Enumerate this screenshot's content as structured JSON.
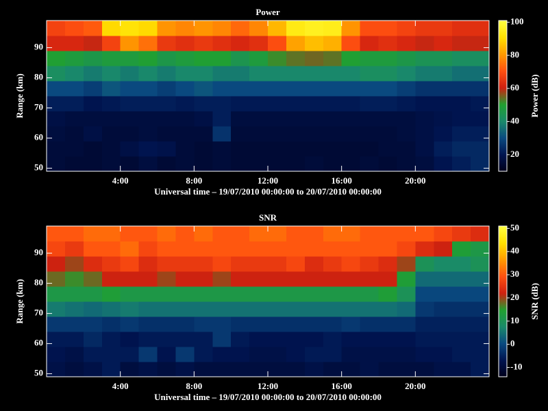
{
  "chart_data": [
    {
      "type": "heatmap",
      "title": "Power",
      "xlabel": "Universal time – 19/07/2010 00:00:00 to 20/07/2010 00:00:00",
      "ylabel": "Range (km)",
      "colorbar_label": "Power (dB)",
      "xbins": [
        0,
        1,
        2,
        3,
        4,
        5,
        6,
        7,
        8,
        9,
        10,
        11,
        12,
        13,
        14,
        15,
        16,
        17,
        18,
        19,
        20,
        21,
        22,
        23,
        24
      ],
      "ybins": [
        49,
        54,
        59,
        64,
        69,
        74,
        79,
        84,
        89,
        94,
        99
      ],
      "z": [
        [
          16,
          15,
          15,
          16,
          15,
          17,
          15,
          16,
          15,
          16,
          15,
          15,
          15,
          15,
          16,
          15,
          15,
          16,
          15,
          16,
          17,
          20,
          22,
          24
        ],
        [
          16,
          16,
          15,
          16,
          18,
          20,
          19,
          16,
          15,
          16,
          15,
          15,
          15,
          15,
          15,
          15,
          15,
          15,
          16,
          16,
          18,
          22,
          24,
          24
        ],
        [
          17,
          16,
          18,
          16,
          16,
          17,
          16,
          16,
          16,
          26,
          16,
          16,
          16,
          16,
          16,
          16,
          16,
          16,
          16,
          17,
          18,
          20,
          22,
          22
        ],
        [
          18,
          17,
          17,
          17,
          17,
          17,
          17,
          17,
          18,
          22,
          17,
          17,
          17,
          17,
          17,
          17,
          17,
          17,
          17,
          17,
          18,
          19,
          20,
          20
        ],
        [
          22,
          22,
          20,
          21,
          22,
          22,
          22,
          21,
          22,
          22,
          21,
          21,
          21,
          21,
          21,
          21,
          21,
          22,
          22,
          21,
          20,
          20,
          20,
          21
        ],
        [
          30,
          30,
          28,
          32,
          30,
          30,
          28,
          30,
          32,
          30,
          30,
          30,
          30,
          30,
          30,
          30,
          30,
          30,
          30,
          28,
          26,
          26,
          26,
          26
        ],
        [
          42,
          40,
          38,
          40,
          38,
          40,
          38,
          40,
          40,
          38,
          38,
          40,
          40,
          40,
          40,
          40,
          40,
          42,
          42,
          40,
          38,
          38,
          36,
          36
        ],
        [
          50,
          48,
          46,
          48,
          48,
          50,
          46,
          48,
          50,
          50,
          45,
          48,
          52,
          54,
          55,
          54,
          50,
          48,
          48,
          46,
          44,
          44,
          42,
          42
        ],
        [
          62,
          62,
          60,
          68,
          80,
          75,
          66,
          64,
          66,
          64,
          62,
          64,
          70,
          82,
          86,
          84,
          70,
          62,
          64,
          62,
          60,
          62,
          60,
          60
        ],
        [
          68,
          70,
          72,
          90,
          92,
          90,
          80,
          78,
          80,
          78,
          74,
          78,
          85,
          94,
          96,
          95,
          80,
          70,
          70,
          68,
          66,
          66,
          64,
          64
        ]
      ],
      "xlim": [
        0,
        24
      ],
      "ylim": [
        49,
        99
      ],
      "xticks": [
        {
          "value": 4,
          "label": "4:00"
        },
        {
          "value": 8,
          "label": "8:00"
        },
        {
          "value": 12,
          "label": "12:00"
        },
        {
          "value": 16,
          "label": "16:00"
        },
        {
          "value": 20,
          "label": "20:00"
        }
      ],
      "yticks": [
        50,
        60,
        70,
        80,
        90
      ],
      "clim": [
        10,
        101
      ],
      "cticks": [
        20,
        40,
        60,
        80,
        100
      ],
      "colormap": [
        "#00001a",
        "#001450",
        "#0a4a80",
        "#1a8a6a",
        "#20a030",
        "#d02010",
        "#ff5010",
        "#ff9a00",
        "#ffe000",
        "#ffff40"
      ]
    },
    {
      "type": "heatmap",
      "title": "SNR",
      "xlabel": "Universal time – 19/07/2010 00:00:00 to 20/07/2010 00:00:00",
      "ylabel": "Range (km)",
      "colorbar_label": "SNR (dB)",
      "xbins": [
        0,
        1,
        2,
        3,
        4,
        5,
        6,
        7,
        8,
        9,
        10,
        11,
        12,
        13,
        14,
        15,
        16,
        17,
        18,
        19,
        20,
        21,
        22,
        23,
        24
      ],
      "ybins": [
        49,
        54,
        59,
        64,
        69,
        74,
        79,
        84,
        89,
        94,
        99
      ],
      "z": [
        [
          -8,
          -9,
          -8,
          -6,
          -9,
          -8,
          -9,
          -8,
          -9,
          -9,
          -9,
          -9,
          -9,
          -9,
          -8,
          -9,
          -9,
          -8,
          -9,
          -9,
          -9,
          -8,
          -8,
          -6
        ],
        [
          -7,
          -8,
          -6,
          -6,
          -6,
          -2,
          -7,
          -2,
          -6,
          -7,
          -7,
          -8,
          -8,
          -7,
          -6,
          -6,
          -8,
          -8,
          -8,
          -8,
          -7,
          -7,
          -6,
          -6
        ],
        [
          -6,
          -6,
          -4,
          -6,
          -7,
          -6,
          -6,
          -6,
          -6,
          -2,
          -6,
          -7,
          -7,
          -7,
          -7,
          -6,
          -7,
          -7,
          -7,
          -7,
          -6,
          -6,
          -6,
          -6
        ],
        [
          -2,
          -2,
          -2,
          -3,
          -2,
          -3,
          -3,
          -3,
          -2,
          -2,
          -3,
          -3,
          -3,
          -3,
          -3,
          -3,
          -2,
          -3,
          -3,
          -3,
          -5,
          -5,
          -5,
          -5
        ],
        [
          6,
          5,
          4,
          5,
          6,
          5,
          5,
          5,
          5,
          5,
          5,
          5,
          5,
          5,
          5,
          5,
          5,
          5,
          5,
          4,
          -2,
          -3,
          -3,
          -3
        ],
        [
          12,
          12,
          12,
          14,
          12,
          12,
          12,
          12,
          12,
          12,
          12,
          12,
          12,
          12,
          12,
          12,
          12,
          12,
          14,
          10,
          0,
          0,
          0,
          0
        ],
        [
          18,
          16,
          18,
          22,
          22,
          22,
          20,
          22,
          22,
          20,
          22,
          22,
          22,
          22,
          22,
          22,
          22,
          22,
          22,
          14,
          4,
          4,
          4,
          4
        ],
        [
          22,
          20,
          24,
          26,
          28,
          24,
          26,
          26,
          26,
          28,
          26,
          26,
          26,
          28,
          24,
          26,
          28,
          26,
          24,
          20,
          10,
          8,
          8,
          10
        ],
        [
          28,
          26,
          30,
          30,
          32,
          28,
          30,
          30,
          30,
          30,
          30,
          30,
          30,
          30,
          30,
          30,
          30,
          30,
          30,
          28,
          24,
          22,
          14,
          12
        ],
        [
          30,
          30,
          32,
          32,
          30,
          30,
          32,
          30,
          32,
          30,
          30,
          32,
          32,
          30,
          30,
          32,
          32,
          30,
          30,
          30,
          30,
          28,
          26,
          24
        ]
      ],
      "xlim": [
        0,
        24
      ],
      "ylim": [
        49,
        99
      ],
      "xticks": [
        {
          "value": 4,
          "label": "4:00"
        },
        {
          "value": 8,
          "label": "8:00"
        },
        {
          "value": 12,
          "label": "12:00"
        },
        {
          "value": 16,
          "label": "16:00"
        },
        {
          "value": 20,
          "label": "20:00"
        }
      ],
      "yticks": [
        50,
        60,
        70,
        80,
        90
      ],
      "clim": [
        -14,
        51
      ],
      "cticks": [
        -10,
        0,
        10,
        20,
        30,
        40,
        50
      ],
      "colormap": [
        "#00001a",
        "#001450",
        "#0a4a80",
        "#1a8a6a",
        "#20a030",
        "#d02010",
        "#ff5010",
        "#ff9a00",
        "#ffe000",
        "#ffff40"
      ]
    }
  ]
}
